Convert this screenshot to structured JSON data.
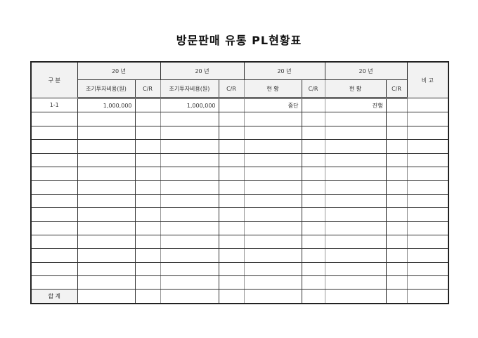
{
  "title": "방문판매 유통 PL현황표",
  "header": {
    "category": "구 분",
    "years": [
      "20  년",
      "20  년",
      "20  년",
      "20  년"
    ],
    "remarks": "비 고",
    "sub": [
      "조기투자비용(원)",
      "C/R",
      "조기투자비용(원)",
      "C/R",
      "현  황",
      "C/R",
      "현  황",
      "C/R"
    ]
  },
  "rows": [
    [
      "1-1",
      "1,000,000",
      "",
      "1,000,000",
      "",
      "중단",
      "",
      "진행",
      "",
      ""
    ],
    [
      "",
      "",
      "",
      "",
      "",
      "",
      "",
      "",
      "",
      ""
    ],
    [
      "",
      "",
      "",
      "",
      "",
      "",
      "",
      "",
      "",
      ""
    ],
    [
      "",
      "",
      "",
      "",
      "",
      "",
      "",
      "",
      "",
      ""
    ],
    [
      "",
      "",
      "",
      "",
      "",
      "",
      "",
      "",
      "",
      ""
    ],
    [
      "",
      "",
      "",
      "",
      "",
      "",
      "",
      "",
      "",
      ""
    ],
    [
      "",
      "",
      "",
      "",
      "",
      "",
      "",
      "",
      "",
      ""
    ],
    [
      "",
      "",
      "",
      "",
      "",
      "",
      "",
      "",
      "",
      ""
    ],
    [
      "",
      "",
      "",
      "",
      "",
      "",
      "",
      "",
      "",
      ""
    ],
    [
      "",
      "",
      "",
      "",
      "",
      "",
      "",
      "",
      "",
      ""
    ],
    [
      "",
      "",
      "",
      "",
      "",
      "",
      "",
      "",
      "",
      ""
    ],
    [
      "",
      "",
      "",
      "",
      "",
      "",
      "",
      "",
      "",
      ""
    ],
    [
      "",
      "",
      "",
      "",
      "",
      "",
      "",
      "",
      "",
      ""
    ],
    [
      "",
      "",
      "",
      "",
      "",
      "",
      "",
      "",
      "",
      ""
    ]
  ],
  "total_label": "합  계"
}
